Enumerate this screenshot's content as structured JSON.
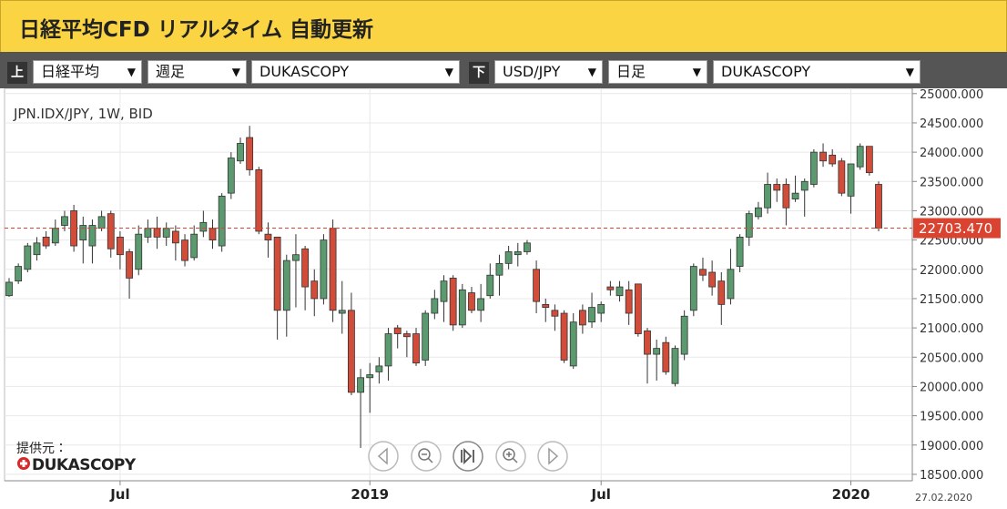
{
  "header": {
    "title": "日経平均CFD リアルタイム 自動更新"
  },
  "controls": {
    "upper": {
      "marker": "上",
      "index": "日経平均",
      "period": "週足",
      "source": "DUKASCOPY"
    },
    "lower": {
      "marker": "下",
      "index": "USD/JPY",
      "period": "日足",
      "source": "DUKASCOPY"
    }
  },
  "provider": {
    "label": "提供元：",
    "logo": "DUKASCOPY"
  },
  "chart_data": {
    "type": "candlestick",
    "symbol_label": "JPN.IDX/JPY, 1W, BID",
    "date_label": "27.02.2020",
    "up_color": "#5b9a6e",
    "down_color": "#d24c3a",
    "grid": true,
    "categories": [
      null,
      null,
      null,
      null,
      null,
      null,
      null,
      null,
      null,
      null,
      null,
      null,
      "Jul",
      null,
      null,
      null,
      null,
      null,
      null,
      null,
      null,
      null,
      null,
      null,
      null,
      null,
      null,
      null,
      null,
      null,
      null,
      null,
      null,
      null,
      null,
      null,
      null,
      null,
      null,
      "2019",
      null,
      null,
      null,
      null,
      null,
      null,
      null,
      null,
      null,
      null,
      null,
      null,
      null,
      null,
      null,
      null,
      null,
      null,
      null,
      null,
      null,
      null,
      null,
      null,
      "Jul",
      null,
      null,
      null,
      null,
      null,
      null,
      null,
      null,
      null,
      null,
      null,
      null,
      null,
      null,
      null,
      null,
      null,
      null,
      null,
      null,
      null,
      null,
      null,
      null,
      null,
      null,
      "2020",
      null,
      null,
      null
    ],
    "open": [
      21550,
      21800,
      22000,
      22250,
      22550,
      22450,
      22750,
      23000,
      22500,
      22400,
      22700,
      22950,
      22550,
      22300,
      22000,
      22550,
      22700,
      22550,
      22650,
      22500,
      22200,
      22650,
      22700,
      22400,
      23300,
      23850,
      24250,
      23700,
      22600,
      22550,
      21300,
      22150,
      22350,
      21800,
      21500,
      22700,
      21250,
      21300,
      19900,
      20150,
      20250,
      20350,
      21000,
      20900,
      20900,
      20450,
      21250,
      21450,
      21850,
      21050,
      21600,
      21300,
      21550,
      21900,
      22100,
      22250,
      22300,
      22000,
      21400,
      21300,
      21250,
      20350,
      21300,
      21100,
      21250,
      21700,
      21550,
      21650,
      21750,
      20950,
      20550,
      20750,
      20050,
      20550,
      21300,
      22000,
      21950,
      21800,
      21500,
      22050,
      22550,
      22900,
      23050,
      23450,
      23450,
      23200,
      23350,
      23450,
      24000,
      23950,
      23850,
      23250,
      23750,
      24100,
      23450
    ],
    "high": [
      21850,
      22100,
      22450,
      22550,
      22650,
      22850,
      23000,
      23100,
      22900,
      22850,
      23000,
      23000,
      22650,
      22350,
      22750,
      22850,
      22900,
      22800,
      22750,
      22600,
      22750,
      23000,
      22850,
      23300,
      24000,
      24250,
      24450,
      23750,
      22800,
      22550,
      22250,
      22600,
      22400,
      22000,
      22600,
      22850,
      21800,
      21600,
      20300,
      20400,
      20500,
      21000,
      21050,
      20950,
      21000,
      21300,
      21650,
      21900,
      21900,
      21750,
      21700,
      21750,
      22100,
      22250,
      22400,
      22450,
      22500,
      22150,
      21500,
      21400,
      21300,
      21250,
      21400,
      21600,
      21450,
      21800,
      21800,
      21800,
      21750,
      21000,
      20800,
      20850,
      20700,
      21300,
      22100,
      22200,
      22150,
      21950,
      22350,
      22600,
      23000,
      23150,
      23650,
      23550,
      23550,
      23600,
      23550,
      24050,
      24150,
      24050,
      23900,
      23800,
      24150,
      24100,
      23500
    ],
    "low": [
      21530,
      21750,
      21950,
      22150,
      22350,
      22400,
      22650,
      22300,
      22100,
      22100,
      22650,
      22200,
      22000,
      21500,
      21900,
      22450,
      22350,
      22400,
      22150,
      22050,
      22150,
      22550,
      22350,
      22300,
      23200,
      23800,
      23600,
      22600,
      22200,
      20800,
      20850,
      21350,
      21300,
      21200,
      21400,
      21100,
      20900,
      19850,
      18950,
      19550,
      20050,
      20100,
      20650,
      20500,
      20350,
      20350,
      21150,
      21100,
      20950,
      21000,
      21250,
      21100,
      21500,
      21550,
      22000,
      22050,
      22250,
      21250,
      21100,
      20950,
      20400,
      20300,
      20900,
      21000,
      21100,
      21550,
      21450,
      21050,
      20850,
      20050,
      20100,
      20200,
      20000,
      20450,
      21200,
      21800,
      21550,
      21050,
      21400,
      21950,
      22400,
      22850,
      22950,
      23150,
      22750,
      23150,
      22900,
      23400,
      23750,
      23750,
      23250,
      22950,
      23700,
      23600,
      22650
    ],
    "close": [
      21780,
      22050,
      22400,
      22450,
      22400,
      22700,
      22900,
      22400,
      22750,
      22750,
      22900,
      22350,
      22250,
      21850,
      22600,
      22700,
      22550,
      22700,
      22450,
      22150,
      22600,
      22800,
      22500,
      23250,
      23900,
      24150,
      23700,
      22650,
      22500,
      21300,
      22150,
      22250,
      21700,
      21500,
      22500,
      21300,
      21300,
      19900,
      20150,
      20200,
      20350,
      20900,
      20900,
      20850,
      20400,
      21250,
      21500,
      21800,
      21050,
      21650,
      21300,
      21500,
      21900,
      22100,
      22300,
      22300,
      22450,
      21450,
      21350,
      21200,
      20450,
      21100,
      21050,
      21350,
      21400,
      21650,
      21700,
      21250,
      20900,
      20550,
      20650,
      20250,
      20650,
      21200,
      22050,
      21900,
      21700,
      21400,
      22000,
      22550,
      22950,
      23050,
      23450,
      23350,
      23050,
      23300,
      23500,
      24000,
      23850,
      23800,
      23300,
      23800,
      24100,
      23650,
      22703.47
    ],
    "ylim": [
      18390,
      25090
    ],
    "yticks": [
      {
        "value": 18500,
        "label": "18500.000"
      },
      {
        "value": 19000,
        "label": "19000.000"
      },
      {
        "value": 19500,
        "label": "19500.000"
      },
      {
        "value": 20000,
        "label": "20000.000"
      },
      {
        "value": 20500,
        "label": "20500.000"
      },
      {
        "value": 21000,
        "label": "21000.000"
      },
      {
        "value": 21500,
        "label": "21500.000"
      },
      {
        "value": 22000,
        "label": "22000.000"
      },
      {
        "value": 22500,
        "label": "22500.000"
      },
      {
        "value": 23000,
        "label": "23000.000"
      },
      {
        "value": 23500,
        "label": "23500.000"
      },
      {
        "value": 24000,
        "label": "24000.000"
      },
      {
        "value": 24500,
        "label": "24500.000"
      },
      {
        "value": 25000,
        "label": "25000.000"
      }
    ],
    "last_price": {
      "value": 22703.47,
      "label": "22703.470"
    }
  }
}
